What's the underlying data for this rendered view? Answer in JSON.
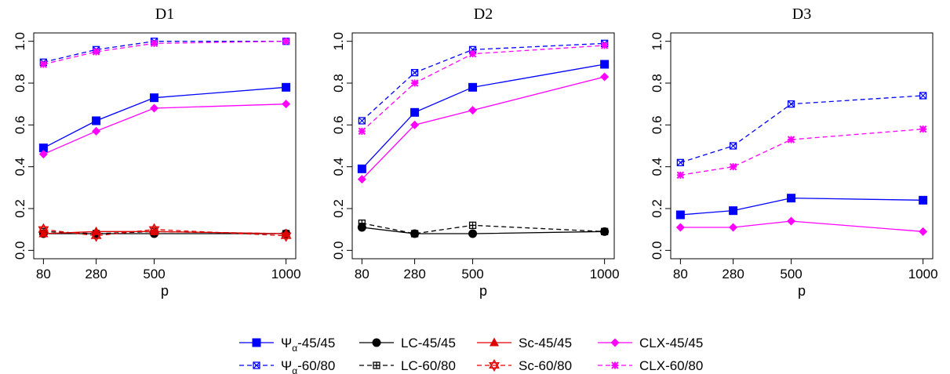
{
  "chart_data": {
    "type": "line",
    "shared_x_ticks": [
      "80",
      "280",
      "500",
      "1000"
    ],
    "shared_y_ticks": [
      "0.0",
      "0.2",
      "0.4",
      "0.6",
      "0.8",
      "1.0"
    ],
    "xlabel": "p",
    "ylim": [
      0.0,
      1.0
    ],
    "grid": false,
    "legend_position": "bottom",
    "panels": [
      {
        "title": "D1",
        "x": [
          80,
          280,
          500,
          1000
        ],
        "series": [
          {
            "id": "psi45",
            "values": [
              0.49,
              0.62,
              0.73,
              0.78
            ]
          },
          {
            "id": "psi60",
            "values": [
              0.9,
              0.96,
              1.0,
              1.0
            ]
          },
          {
            "id": "clx45",
            "values": [
              0.46,
              0.57,
              0.68,
              0.7
            ]
          },
          {
            "id": "clx60",
            "values": [
              0.89,
              0.95,
              0.99,
              1.0
            ]
          },
          {
            "id": "lc45",
            "values": [
              0.08,
              0.08,
              0.08,
              0.08
            ]
          },
          {
            "id": "lc60",
            "values": [
              0.09,
              0.08,
              0.09,
              0.08
            ]
          },
          {
            "id": "sc45",
            "values": [
              0.08,
              0.09,
              0.09,
              0.08
            ]
          },
          {
            "id": "sc60",
            "values": [
              0.1,
              0.07,
              0.1,
              0.07
            ]
          }
        ]
      },
      {
        "title": "D2",
        "x": [
          80,
          280,
          500,
          1000
        ],
        "series": [
          {
            "id": "psi45",
            "values": [
              0.39,
              0.66,
              0.78,
              0.89
            ]
          },
          {
            "id": "psi60",
            "values": [
              0.62,
              0.85,
              0.96,
              0.99
            ]
          },
          {
            "id": "clx45",
            "values": [
              0.34,
              0.6,
              0.67,
              0.83
            ]
          },
          {
            "id": "clx60",
            "values": [
              0.57,
              0.8,
              0.94,
              0.98
            ]
          },
          {
            "id": "lc45",
            "values": [
              0.11,
              0.08,
              0.08,
              0.09
            ]
          },
          {
            "id": "lc60",
            "values": [
              0.13,
              0.08,
              0.12,
              0.09
            ]
          }
        ]
      },
      {
        "title": "D3",
        "x": [
          80,
          280,
          500,
          1000
        ],
        "series": [
          {
            "id": "psi45",
            "values": [
              0.17,
              0.19,
              0.25,
              0.24
            ]
          },
          {
            "id": "psi60",
            "values": [
              0.42,
              0.5,
              0.7,
              0.74
            ]
          },
          {
            "id": "clx45",
            "values": [
              0.11,
              0.11,
              0.14,
              0.09
            ]
          },
          {
            "id": "clx60",
            "values": [
              0.36,
              0.4,
              0.53,
              0.58
            ]
          }
        ]
      }
    ],
    "legend": [
      {
        "id": "psi45",
        "prefix": "Ψ",
        "sub": "α",
        "label": "-45/45",
        "color": "#0000ff",
        "dash": "solid",
        "marker": "square"
      },
      {
        "id": "psi60",
        "prefix": "Ψ",
        "sub": "α",
        "label": "-60/80",
        "color": "#0000ff",
        "dash": "dashed",
        "marker": "boxed-x"
      },
      {
        "id": "lc45",
        "prefix": "",
        "sub": "",
        "label": "LC-45/45",
        "color": "#000000",
        "dash": "solid",
        "marker": "circle"
      },
      {
        "id": "lc60",
        "prefix": "",
        "sub": "",
        "label": "LC-60/80",
        "color": "#000000",
        "dash": "dashed",
        "marker": "boxed-plus"
      },
      {
        "id": "sc45",
        "prefix": "",
        "sub": "",
        "label": "Sc-45/45",
        "color": "#e00000",
        "dash": "solid",
        "marker": "triangle"
      },
      {
        "id": "sc60",
        "prefix": "",
        "sub": "",
        "label": "Sc-60/80",
        "color": "#e00000",
        "dash": "dashed",
        "marker": "star"
      },
      {
        "id": "clx45",
        "prefix": "",
        "sub": "",
        "label": "CLX-45/45",
        "color": "#ff00ff",
        "dash": "solid",
        "marker": "diamond"
      },
      {
        "id": "clx60",
        "prefix": "",
        "sub": "",
        "label": "CLX-60/80",
        "color": "#ff00ff",
        "dash": "dashed",
        "marker": "asterisk"
      }
    ]
  }
}
